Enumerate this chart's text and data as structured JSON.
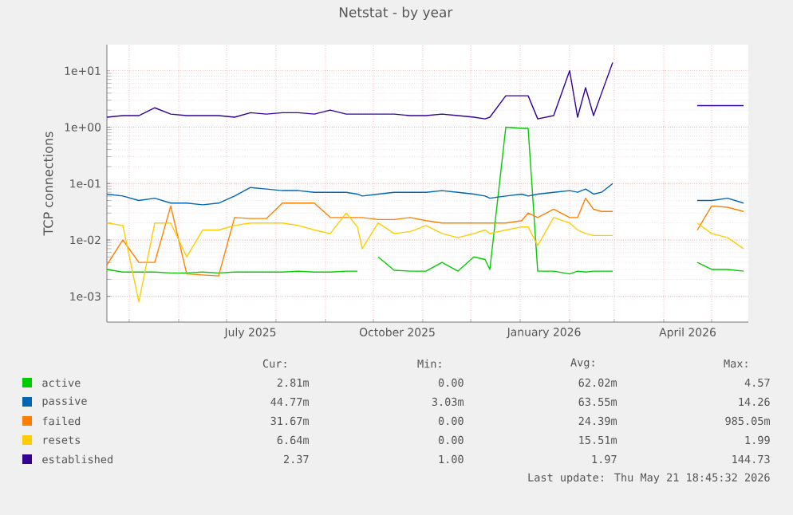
{
  "chart_data": {
    "type": "line",
    "title": "Netstat - by year",
    "ylabel": "TCP connections",
    "log": true,
    "grid": true,
    "legend": "bottom",
    "marker": "none",
    "line_style": "solid",
    "xlim": [
      "2025-04-17",
      "2026-05-24"
    ],
    "xticks": [
      {
        "value": "2025-05-01",
        "label": null
      },
      {
        "value": "2025-06-01",
        "label": null
      },
      {
        "value": "2025-07-01",
        "label": null
      },
      {
        "value": "2025-07-16",
        "label": "July 2025"
      },
      {
        "value": "2025-08-01",
        "label": null
      },
      {
        "value": "2025-09-01",
        "label": null
      },
      {
        "value": "2025-10-01",
        "label": null
      },
      {
        "value": "2025-10-16",
        "label": "October 2025"
      },
      {
        "value": "2025-11-01",
        "label": null
      },
      {
        "value": "2025-12-01",
        "label": null
      },
      {
        "value": "2026-01-01",
        "label": null
      },
      {
        "value": "2026-01-16",
        "label": "January 2026"
      },
      {
        "value": "2026-02-01",
        "label": null
      },
      {
        "value": "2026-03-01",
        "label": null
      },
      {
        "value": "2026-04-01",
        "label": null
      },
      {
        "value": "2026-04-16",
        "label": "April 2026"
      },
      {
        "value": "2026-05-01",
        "label": null
      }
    ],
    "ylim": [
      0.00035,
      29
    ],
    "yticks": [
      {
        "value": 0.001,
        "label": "1e-03"
      },
      {
        "value": 0.01,
        "label": "1e-02"
      },
      {
        "value": 0.1,
        "label": "1e-01"
      },
      {
        "value": 1,
        "label": "1e+00"
      },
      {
        "value": 10,
        "label": "1e+01"
      }
    ],
    "x": [
      "2025-04-17",
      "2025-04-27",
      "2025-05-07",
      "2025-05-17",
      "2025-05-27",
      "2025-06-06",
      "2025-06-16",
      "2025-06-26",
      "2025-07-06",
      "2025-07-16",
      "2025-07-26",
      "2025-08-05",
      "2025-08-15",
      "2025-08-25",
      "2025-09-04",
      "2025-09-14",
      "2025-09-21",
      "2025-09-24",
      "2025-10-04",
      "2025-10-14",
      "2025-10-24",
      "2025-11-03",
      "2025-11-13",
      "2025-11-23",
      "2025-12-03",
      "2025-12-10",
      "2025-12-13",
      "2025-12-23",
      "2026-01-02",
      "2026-01-06",
      "2026-01-12",
      "2026-01-22",
      "2026-02-01",
      "2026-02-06",
      "2026-02-11",
      "2026-02-16",
      "2026-02-21",
      "2026-02-28",
      "2026-03-10",
      "2026-04-22",
      "2026-05-01",
      "2026-05-11",
      "2026-05-21"
    ],
    "series": [
      {
        "name": "active",
        "color": "#00cc00",
        "values": [
          0.003,
          0.0027,
          0.0027,
          0.0027,
          0.0026,
          0.0026,
          0.0027,
          0.0026,
          0.0027,
          0.0027,
          0.0027,
          0.0027,
          0.0028,
          0.0027,
          0.0027,
          0.0028,
          0.0028,
          null,
          0.005,
          0.0029,
          0.0028,
          0.0028,
          0.004,
          0.0028,
          0.005,
          0.0045,
          0.003,
          1.0,
          0.95,
          0.95,
          0.0028,
          0.0028,
          0.0025,
          0.0028,
          0.0027,
          0.0028,
          0.0028,
          0.0028,
          null,
          0.004,
          0.003,
          0.003,
          0.0028
        ]
      },
      {
        "name": "passive",
        "color": "#0066b3",
        "values": [
          0.065,
          0.06,
          0.05,
          0.055,
          0.045,
          0.045,
          0.042,
          0.045,
          0.06,
          0.085,
          0.08,
          0.075,
          0.075,
          0.07,
          0.07,
          0.07,
          0.065,
          0.06,
          0.065,
          0.07,
          0.07,
          0.07,
          0.075,
          0.07,
          0.065,
          0.06,
          0.055,
          0.06,
          0.065,
          0.06,
          0.065,
          0.07,
          0.075,
          0.07,
          0.08,
          0.065,
          0.07,
          0.1,
          null,
          0.05,
          0.05,
          0.055,
          0.045
        ]
      },
      {
        "name": "failed",
        "color": "#ff8000",
        "values": [
          0.0036,
          0.01,
          0.004,
          0.004,
          0.04,
          0.0025,
          0.0024,
          0.0023,
          0.025,
          0.024,
          0.024,
          0.045,
          0.045,
          0.045,
          0.025,
          0.025,
          0.025,
          0.025,
          0.023,
          0.023,
          0.025,
          0.022,
          0.02,
          0.02,
          0.02,
          0.02,
          0.02,
          0.02,
          0.022,
          0.03,
          0.025,
          0.035,
          0.025,
          0.025,
          0.055,
          0.035,
          0.032,
          0.032,
          null,
          0.015,
          0.04,
          0.038,
          0.032
        ]
      },
      {
        "name": "resets",
        "color": "#ffcc00",
        "values": [
          0.02,
          0.018,
          0.0008,
          0.02,
          0.02,
          0.005,
          0.015,
          0.015,
          0.018,
          0.02,
          0.02,
          0.02,
          0.018,
          0.015,
          0.013,
          0.03,
          0.017,
          0.007,
          0.02,
          0.013,
          0.014,
          0.018,
          0.013,
          0.011,
          0.013,
          0.015,
          0.013,
          0.015,
          0.017,
          0.017,
          0.008,
          0.025,
          0.02,
          0.015,
          0.013,
          0.012,
          0.012,
          0.012,
          null,
          0.02,
          0.013,
          0.011,
          0.007
        ]
      },
      {
        "name": "established",
        "color": "#330099",
        "values": [
          1.5,
          1.6,
          1.6,
          2.2,
          1.7,
          1.6,
          1.6,
          1.6,
          1.5,
          1.8,
          1.7,
          1.8,
          1.8,
          1.7,
          2.0,
          1.7,
          1.7,
          1.7,
          1.7,
          1.7,
          1.6,
          1.6,
          1.7,
          1.6,
          1.5,
          1.4,
          1.5,
          3.6,
          3.6,
          3.6,
          1.4,
          1.6,
          10,
          1.5,
          5,
          1.6,
          4,
          14,
          null,
          2.4,
          2.4,
          2.4,
          2.4
        ]
      }
    ],
    "annotations": [
      "Cur:",
      "Min:",
      "Avg:",
      "Max:",
      "2.81m",
      "0.00",
      "62.02m",
      "4.57",
      "44.77m",
      "3.03m",
      "63.55m",
      "14.26",
      "31.67m",
      "0.00",
      "24.39m",
      "985.05m",
      "6.64m",
      "0.00",
      "15.51m",
      "1.99",
      "2.37",
      "1.00",
      "1.97",
      "144.73",
      "Last update: Thu May 21 18:45:32 2026"
    ]
  }
}
